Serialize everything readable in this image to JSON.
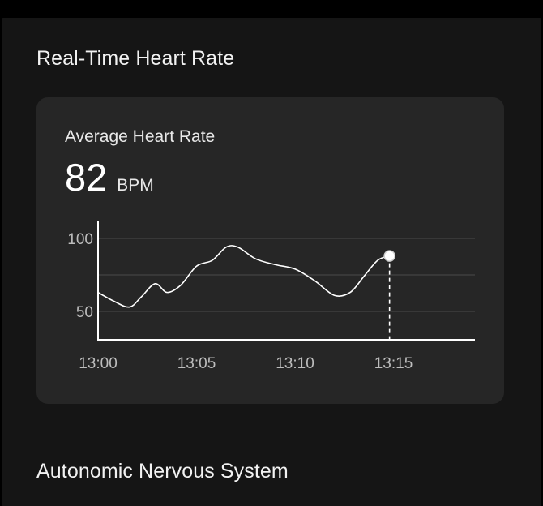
{
  "section_titles": {
    "realtime": "Real-Time Heart Rate",
    "ans": "Autonomic Nervous System"
  },
  "card": {
    "label": "Average Heart Rate",
    "value": "82",
    "unit": "BPM"
  },
  "colors": {
    "background": "#000000",
    "panel": "#151515",
    "card": "#262626",
    "line": "#ffffff",
    "grid": "#4a4a4a",
    "text": "#f2f2f2"
  },
  "chart_data": {
    "type": "line",
    "x_tick_labels": [
      "13:00",
      "13:05",
      "13:10",
      "13:15"
    ],
    "y_tick_labels": [
      "100",
      "50"
    ],
    "y_ticks": [
      100,
      50
    ],
    "x_ticks": [
      0,
      5,
      10,
      15
    ],
    "xlim": [
      0,
      19
    ],
    "ylim": [
      30,
      113
    ],
    "grid": true,
    "series": [
      {
        "x": [
          0,
          0.8,
          1.6,
          2.2,
          2.9,
          3.5,
          4.2,
          5.0,
          5.8,
          6.5,
          7.1,
          8.0,
          9.0,
          10.0,
          11.0,
          12.0,
          12.8,
          13.5,
          14.2,
          14.8
        ],
        "y": [
          63,
          57,
          53,
          60,
          69,
          63,
          68,
          81,
          85,
          94,
          94,
          86,
          82,
          79,
          71,
          61,
          63,
          74,
          85,
          88
        ]
      }
    ],
    "highlight": {
      "x": 14.8,
      "y": 88
    }
  }
}
